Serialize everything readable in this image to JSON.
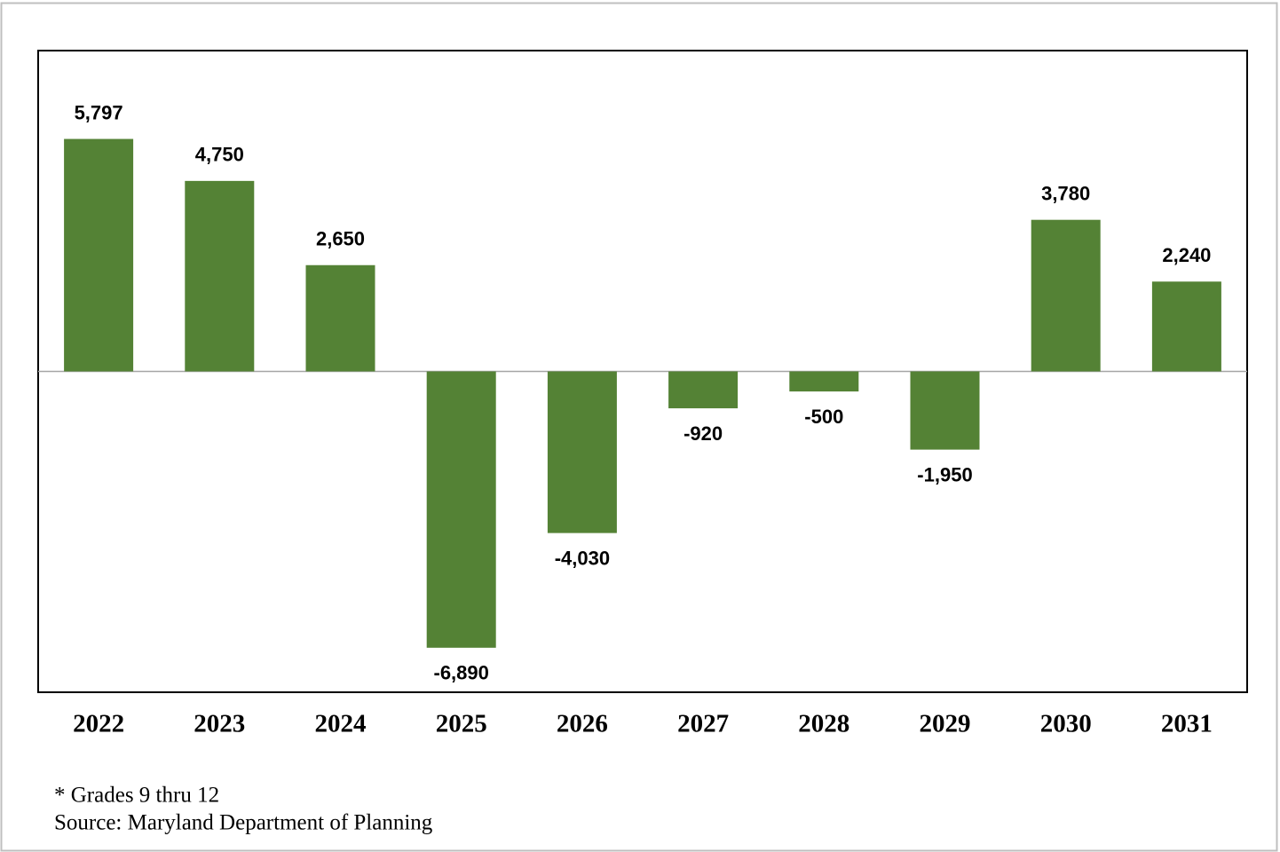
{
  "chart_data": {
    "type": "bar",
    "categories": [
      "2022",
      "2023",
      "2024",
      "2025",
      "2026",
      "2027",
      "2028",
      "2029",
      "2030",
      "2031"
    ],
    "values": [
      5797,
      4750,
      2650,
      -6890,
      -4030,
      -920,
      -500,
      -1950,
      3780,
      2240
    ],
    "value_labels": [
      "5,797",
      "4,750",
      "2,650",
      "-6,890",
      "-4,030",
      "-920",
      "-500",
      "-1,950",
      "3,780",
      "2,240"
    ],
    "color": "#548235",
    "ylim": [
      -8000,
      8000
    ],
    "footnotes": [
      "* Grades 9 thru 12",
      "Source: Maryland Department of Planning"
    ]
  }
}
